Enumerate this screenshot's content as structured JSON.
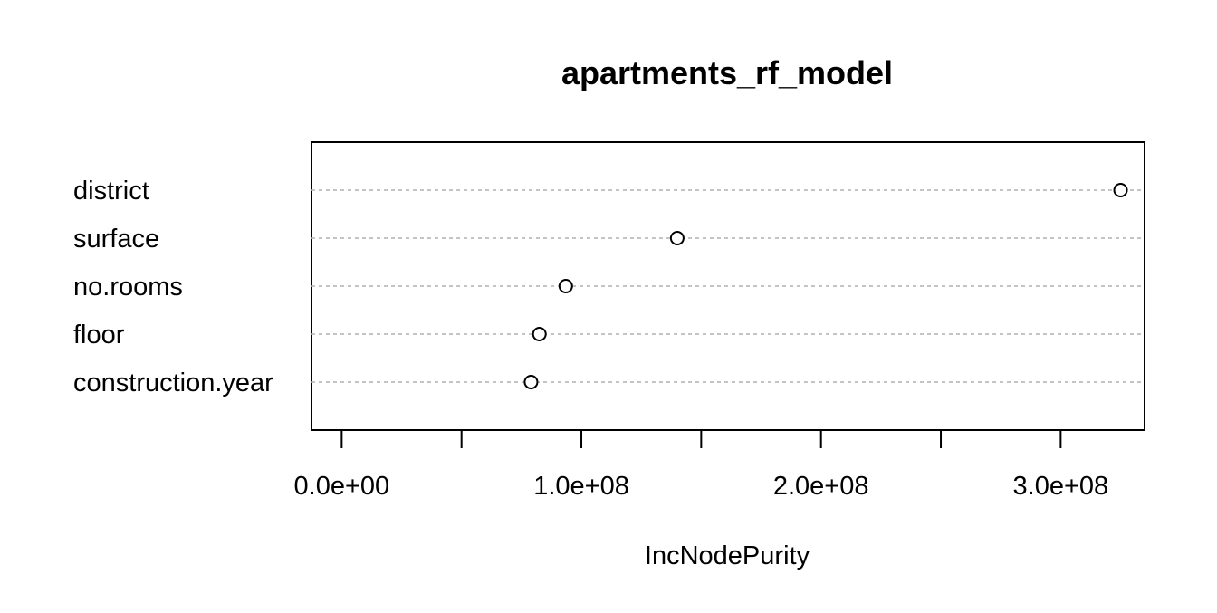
{
  "chart_data": {
    "type": "scatter",
    "title": "apartments_rf_model",
    "xlabel": "IncNodePurity",
    "ylabel": "",
    "categories": [
      "district",
      "surface",
      "no.rooms",
      "floor",
      "construction.year"
    ],
    "values": [
      325000000,
      140000000,
      93500000,
      82500000,
      79000000
    ],
    "xlim": [
      -12600000,
      335000000
    ],
    "x_ticks": [
      0,
      50000000,
      100000000,
      150000000,
      200000000,
      250000000,
      300000000
    ],
    "x_tick_labels": [
      {
        "value": 0,
        "label": "0.0e+00"
      },
      {
        "value": 100000000,
        "label": "1.0e+08"
      },
      {
        "value": 200000000,
        "label": "2.0e+08"
      },
      {
        "value": 300000000,
        "label": "3.0e+08"
      }
    ],
    "grid": "horizontal dotted",
    "marker": "open-circle",
    "colors": {
      "marker": "#000000",
      "grid": "#b0b0b0",
      "frame": "#000000"
    }
  }
}
